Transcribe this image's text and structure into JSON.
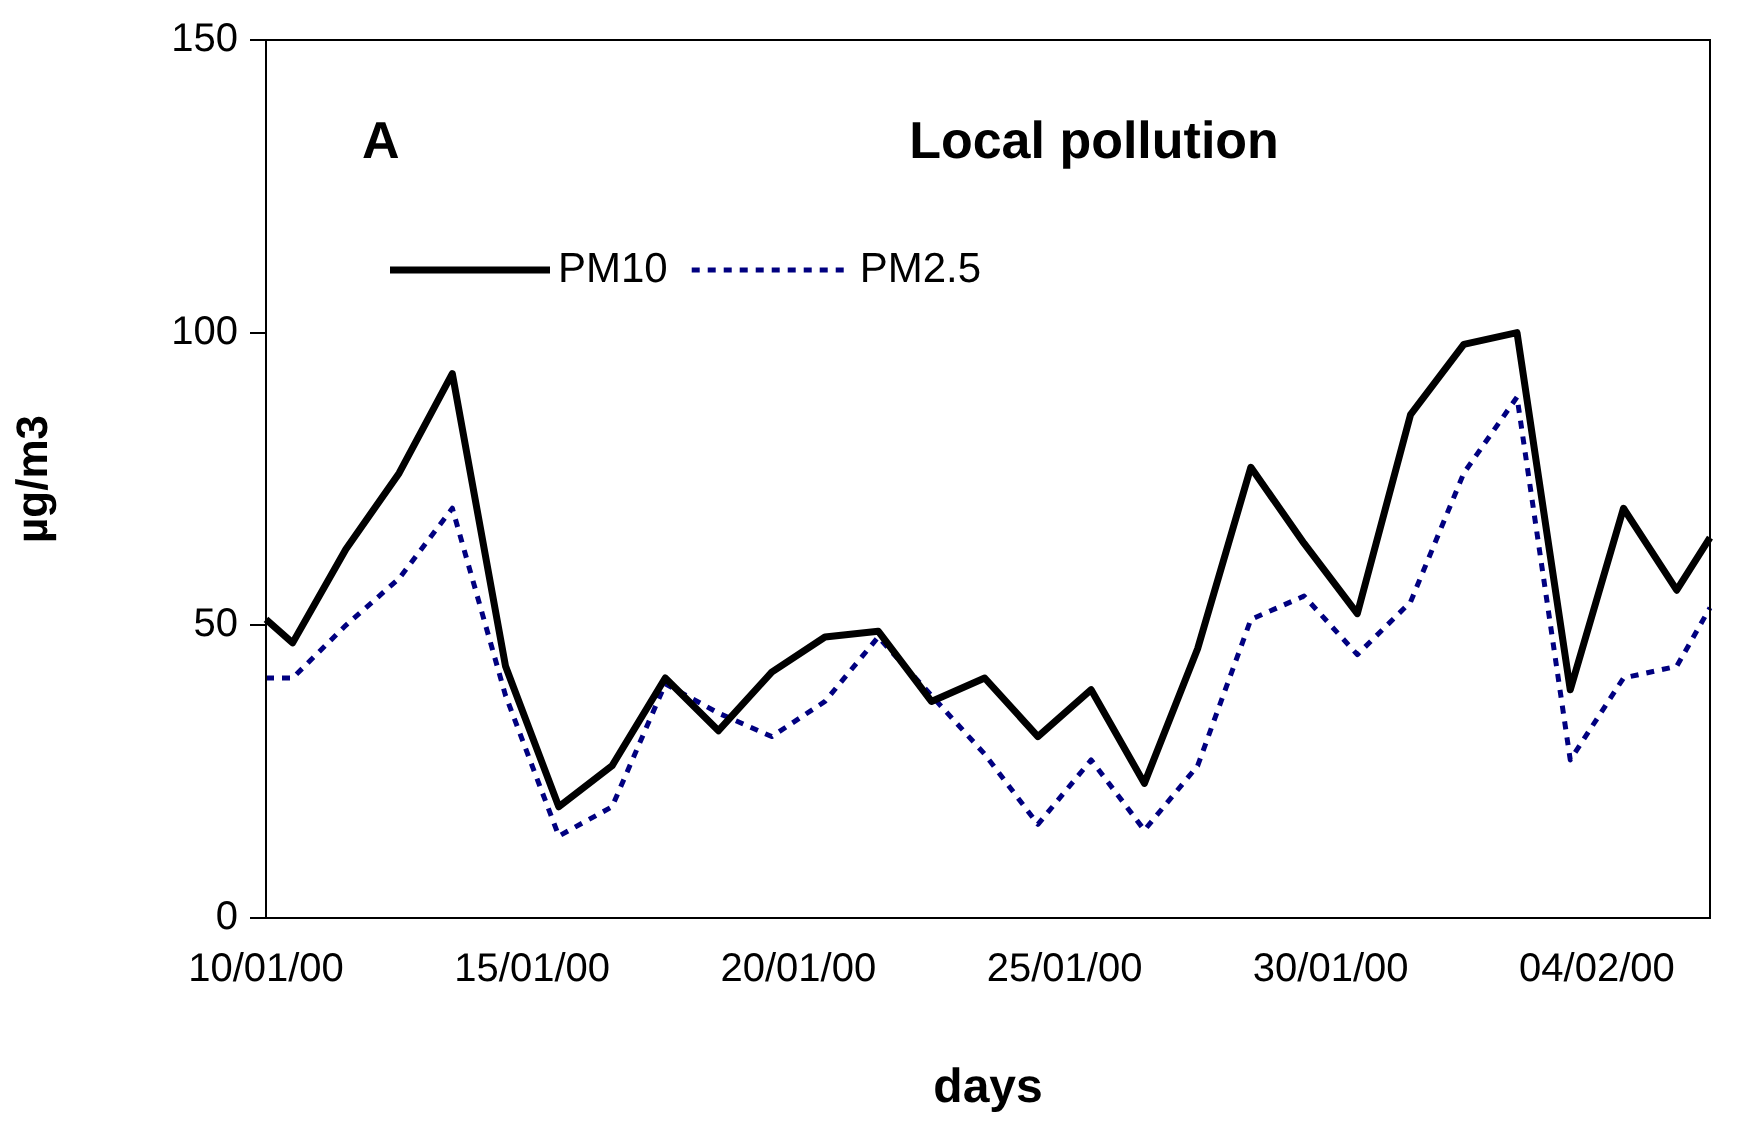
{
  "chart_data": {
    "type": "line",
    "title": "Local pollution",
    "xlabel": "days",
    "ylabel": "µg/m3",
    "annotations": [
      "A"
    ],
    "x": [
      "2000-01-10T00:00",
      "2000-01-10T12:00",
      "2000-01-11T12:00",
      "2000-01-12T12:00",
      "2000-01-13T12:00",
      "2000-01-14T12:00",
      "2000-01-15T12:00",
      "2000-01-16T12:00",
      "2000-01-17T12:00",
      "2000-01-18T12:00",
      "2000-01-19T12:00",
      "2000-01-20T12:00",
      "2000-01-21T12:00",
      "2000-01-22T12:00",
      "2000-01-23T12:00",
      "2000-01-24T12:00",
      "2000-01-25T12:00",
      "2000-01-26T12:00",
      "2000-01-27T12:00",
      "2000-01-28T12:00",
      "2000-01-29T12:00",
      "2000-01-30T12:00",
      "2000-01-31T12:00",
      "2000-02-01T12:00",
      "2000-02-02T12:00",
      "2000-02-03T12:00",
      "2000-02-04T12:00",
      "2000-02-05T12:00",
      "2000-02-06T03:00"
    ],
    "series": [
      {
        "name": "PM10",
        "color": "#000000",
        "line_style": "solid",
        "values": [
          51,
          47,
          63,
          76,
          93,
          43,
          19,
          26,
          41,
          32,
          42,
          48,
          49,
          37,
          41,
          31,
          39,
          23,
          46,
          77,
          64,
          52,
          86,
          98,
          100,
          39,
          70,
          56,
          65
        ]
      },
      {
        "name": "PM2.5",
        "color": "#000080",
        "line_style": "dotted",
        "values": [
          41,
          41,
          50,
          58,
          70,
          38,
          14,
          19,
          40,
          35,
          31,
          37,
          48,
          38,
          28,
          16,
          27,
          15,
          26,
          51,
          55,
          45,
          54,
          76,
          89,
          27,
          41,
          43,
          53
        ]
      }
    ],
    "xlim": [
      "2000-01-10T00:00",
      "2000-02-06T03:00"
    ],
    "xticks": [
      {
        "value": "2000-01-10",
        "label": "10/01/00"
      },
      {
        "value": "2000-01-15",
        "label": "15/01/00"
      },
      {
        "value": "2000-01-20",
        "label": "20/01/00"
      },
      {
        "value": "2000-01-25",
        "label": "25/01/00"
      },
      {
        "value": "2000-01-30",
        "label": "30/01/00"
      },
      {
        "value": "2000-02-04",
        "label": "04/02/00"
      }
    ],
    "ylim": [
      0,
      150
    ],
    "yticks": [
      0,
      50,
      100,
      150
    ],
    "grid": false,
    "legend": "top left",
    "marker": "none"
  }
}
